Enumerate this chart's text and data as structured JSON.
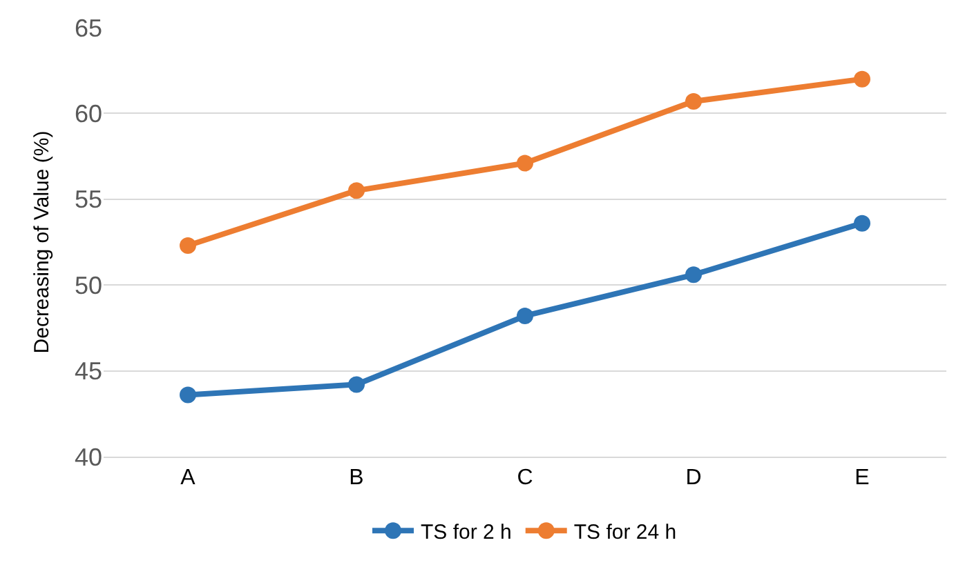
{
  "chart_data": {
    "type": "line",
    "ylabel": "Decreasing of Value (%)",
    "categories": [
      "A",
      "B",
      "C",
      "D",
      "E"
    ],
    "series": [
      {
        "name": "TS for 2 h",
        "color": "#2e75b6",
        "values": [
          43.6,
          44.2,
          48.2,
          50.6,
          53.6
        ]
      },
      {
        "name": "TS for 24 h",
        "color": "#ed7d31",
        "values": [
          52.3,
          55.5,
          57.1,
          60.7,
          62.0
        ]
      }
    ],
    "ylim": [
      40,
      65
    ],
    "yticks": [
      40,
      45,
      50,
      55,
      60,
      65
    ],
    "grid": "y",
    "legend": "bottom",
    "marker": "circle",
    "line_style": "solid"
  }
}
